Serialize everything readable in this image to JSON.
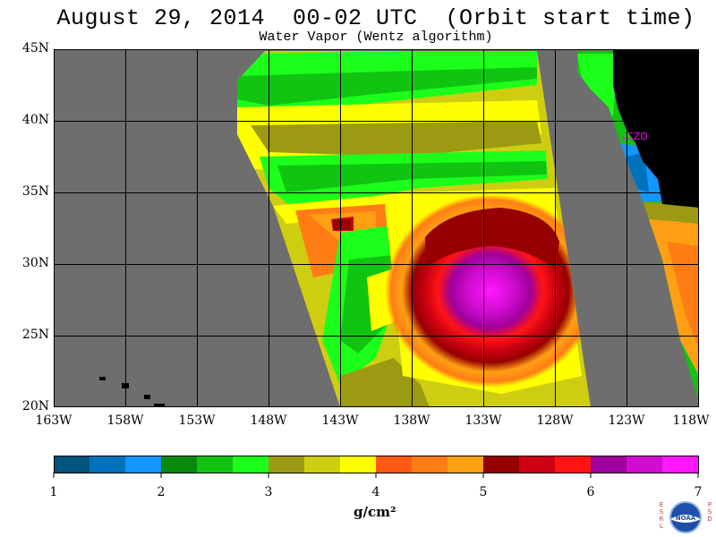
{
  "title": "August 29, 2014  00-02 UTC  (Orbit start time)",
  "subtitle": "Water Vapor (Wentz algorithm)",
  "map": {
    "latitude_labels": [
      "45N",
      "40N",
      "35N",
      "30N",
      "25N",
      "20N"
    ],
    "latitudes": [
      45,
      40,
      35,
      30,
      25,
      20
    ],
    "longitude_labels": [
      "163W",
      "158W",
      "153W",
      "148W",
      "143W",
      "138W",
      "133W",
      "128W",
      "123W",
      "118W"
    ],
    "longitudes": [
      -163,
      -158,
      -153,
      -148,
      -143,
      -138,
      -133,
      -128,
      -123,
      -118
    ],
    "lon_range": [
      -163,
      -118
    ],
    "lat_range": [
      20,
      45
    ],
    "grid": true,
    "station_label": "CZD",
    "background_color": "#6e6e6e",
    "land_color": "#000000",
    "station_color": "#ff00ff"
  },
  "colorbar": {
    "ticks": [
      "1",
      "2",
      "3",
      "4",
      "5",
      "6",
      "7"
    ],
    "range": [
      1,
      7
    ],
    "colors": [
      "#00537a",
      "#0072bb",
      "#1496ff",
      "#0a8a0a",
      "#11c411",
      "#1bff1b",
      "#9c9a12",
      "#cfcd12",
      "#ffff00",
      "#ff5a14",
      "#ff7d14",
      "#ffa014",
      "#960000",
      "#cc0012",
      "#ff1414",
      "#a0009c",
      "#cf0ccf",
      "#ff18ff"
    ],
    "units": "g/cm²"
  },
  "logo": {
    "left_text": "ESRL",
    "right_text": "PSD",
    "center_text": "NOAA",
    "primary_color": "#1f4fa8",
    "accent_color": "#d23a3a"
  }
}
